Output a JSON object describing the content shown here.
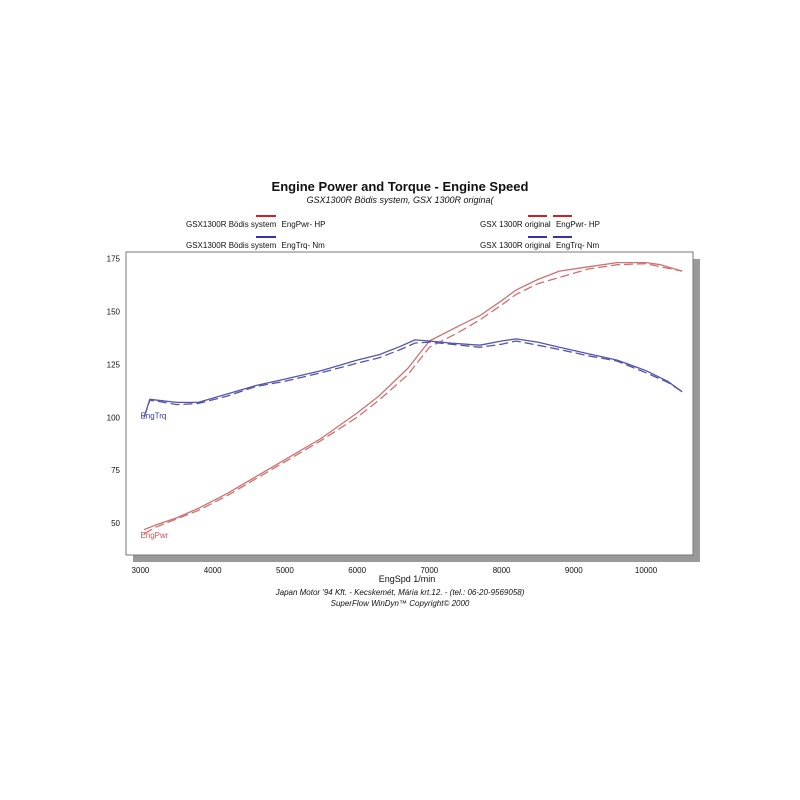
{
  "chart_data": {
    "type": "line",
    "title": "Engine Power and Torque - Engine Speed",
    "subtitle": "GSX1300R Bödis system, GSX 1300R origina(",
    "xlabel": "EngSpd 1/min",
    "xlim": [
      2800,
      10650
    ],
    "ylim": [
      35,
      178
    ],
    "xticks": [
      "3000",
      "4000",
      "5000",
      "6000",
      "7000",
      "8000",
      "9000",
      "10000"
    ],
    "yticks": [
      "50",
      "75",
      "100",
      "125",
      "150",
      "175"
    ],
    "grid": false,
    "legend": [
      {
        "label": "GSX1300R Bödis system",
        "unit_label": "EngPwr-   HP",
        "color": "#cc2222",
        "dash": "solid",
        "position": "top-left"
      },
      {
        "label": "GSX1300R Bödis system",
        "unit_label": "EngTrq-   Nm",
        "color": "#3333aa",
        "dash": "solid",
        "position": "top-left"
      },
      {
        "label": "GSX 1300R original",
        "unit_label": "EngPwr-   HP",
        "color": "#cc2222",
        "dash": "dashed",
        "position": "top-right"
      },
      {
        "label": "GSX 1300R original",
        "unit_label": "EngTrq-   Nm",
        "color": "#3333aa",
        "dash": "dashed",
        "position": "top-right"
      }
    ],
    "annotations": [
      {
        "text": "EngTrq",
        "x": 3000,
        "y": 99.5,
        "color": "#3333aa"
      },
      {
        "text": "EngPwr",
        "x": 3000,
        "y": 43,
        "color": "#cc5555"
      }
    ],
    "series": [
      {
        "name": "GSX1300R Bödis system EngPwr- HP",
        "color": "#d07070",
        "dash": "solid",
        "x": [
          3050,
          3200,
          3500,
          3800,
          4200,
          4600,
          5000,
          5500,
          6000,
          6300,
          6700,
          7000,
          7400,
          7700,
          8000,
          8200,
          8500,
          8800,
          9200,
          9600,
          10000,
          10200,
          10500
        ],
        "y": [
          47,
          49,
          52.5,
          57,
          64,
          72,
          80,
          90,
          102,
          110,
          123,
          136,
          143,
          148,
          155,
          160,
          165,
          169,
          171,
          173,
          173,
          172,
          169
        ]
      },
      {
        "name": "GSX 1300R original EngPwr- HP",
        "color": "#d07070",
        "dash": "dashed",
        "x": [
          3050,
          3200,
          3500,
          3800,
          4200,
          4600,
          5000,
          5500,
          6000,
          6300,
          6700,
          7000,
          7400,
          7700,
          8000,
          8200,
          8500,
          8800,
          9200,
          9600,
          10000,
          10200,
          10500
        ],
        "y": [
          45,
          48,
          52,
          56,
          63,
          71,
          79,
          89,
          100,
          108,
          120,
          133,
          140,
          146,
          153,
          158,
          163,
          166,
          170,
          172,
          172.5,
          171,
          169
        ]
      },
      {
        "name": "GSX1300R Bödis system EngTrq- Nm",
        "color": "#5555aa",
        "dash": "solid",
        "x": [
          3050,
          3130,
          3250,
          3500,
          3800,
          4200,
          4600,
          5000,
          5500,
          6000,
          6300,
          6600,
          6800,
          7000,
          7300,
          7700,
          8000,
          8200,
          8500,
          8800,
          9200,
          9600,
          10000,
          10300,
          10500
        ],
        "y": [
          100,
          108.5,
          108,
          107,
          107,
          111,
          115,
          118,
          122,
          127,
          129.5,
          133.5,
          136.5,
          136,
          135,
          134,
          136,
          137,
          135.5,
          133,
          130,
          127,
          122,
          117,
          112
        ]
      },
      {
        "name": "GSX 1300R original EngTrq- Nm",
        "color": "#5555aa",
        "dash": "dashed",
        "x": [
          3050,
          3130,
          3250,
          3500,
          3800,
          4200,
          4600,
          5000,
          5500,
          6000,
          6300,
          6600,
          6800,
          7000,
          7300,
          7700,
          8000,
          8200,
          8500,
          8800,
          9200,
          9600,
          10000,
          10300,
          10500
        ],
        "y": [
          100,
          108,
          107.5,
          106,
          106.5,
          110,
          114.5,
          117,
          121,
          125.5,
          128,
          132,
          135,
          135.5,
          134.5,
          133,
          134.5,
          136,
          134,
          132,
          129,
          126.5,
          121,
          116.5,
          112
        ]
      }
    ]
  },
  "footer": {
    "line1": "Japan Motor '94 Kft.  -  Kecskemét, Mária krt.12.  -  (tel.: 06-20-9569058)",
    "line2": "SuperFlow WinDyn™  Copyright© 2000"
  }
}
